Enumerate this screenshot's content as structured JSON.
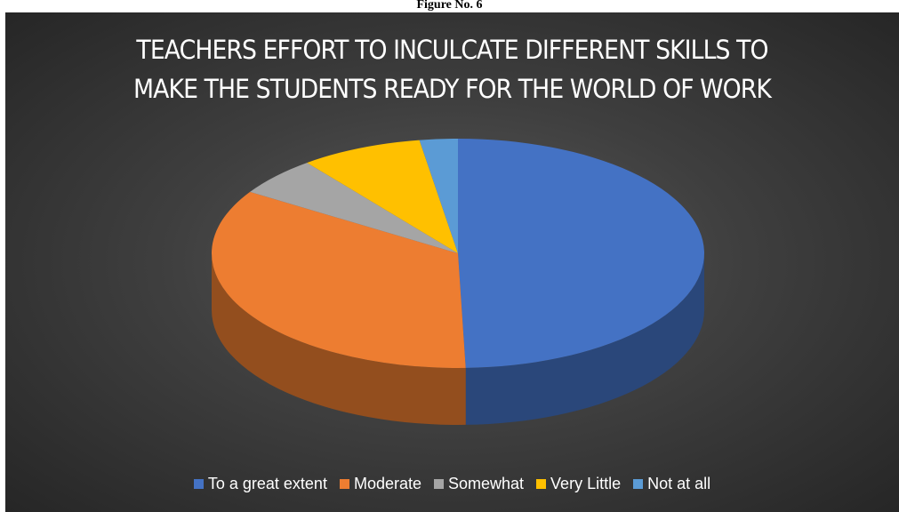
{
  "caption": "Figure No. 6",
  "chart_data": {
    "type": "pie",
    "title_lines": [
      "TEACHERS EFFORT TO INCULCATE DIFFERENT SKILLS TO",
      "MAKE THE STUDENTS READY FOR THE WORLD OF WORK"
    ],
    "categories": [
      "To a great extent",
      "Moderate",
      "Somewhat",
      "Very Little",
      "Not at all"
    ],
    "values": [
      49.5,
      34.5,
      5.5,
      8,
      2.5
    ],
    "colors": [
      "#4472C4",
      "#ED7D31",
      "#A5A5A5",
      "#FFC000",
      "#5B9BD5"
    ],
    "legend_position": "bottom",
    "style": "3d"
  }
}
